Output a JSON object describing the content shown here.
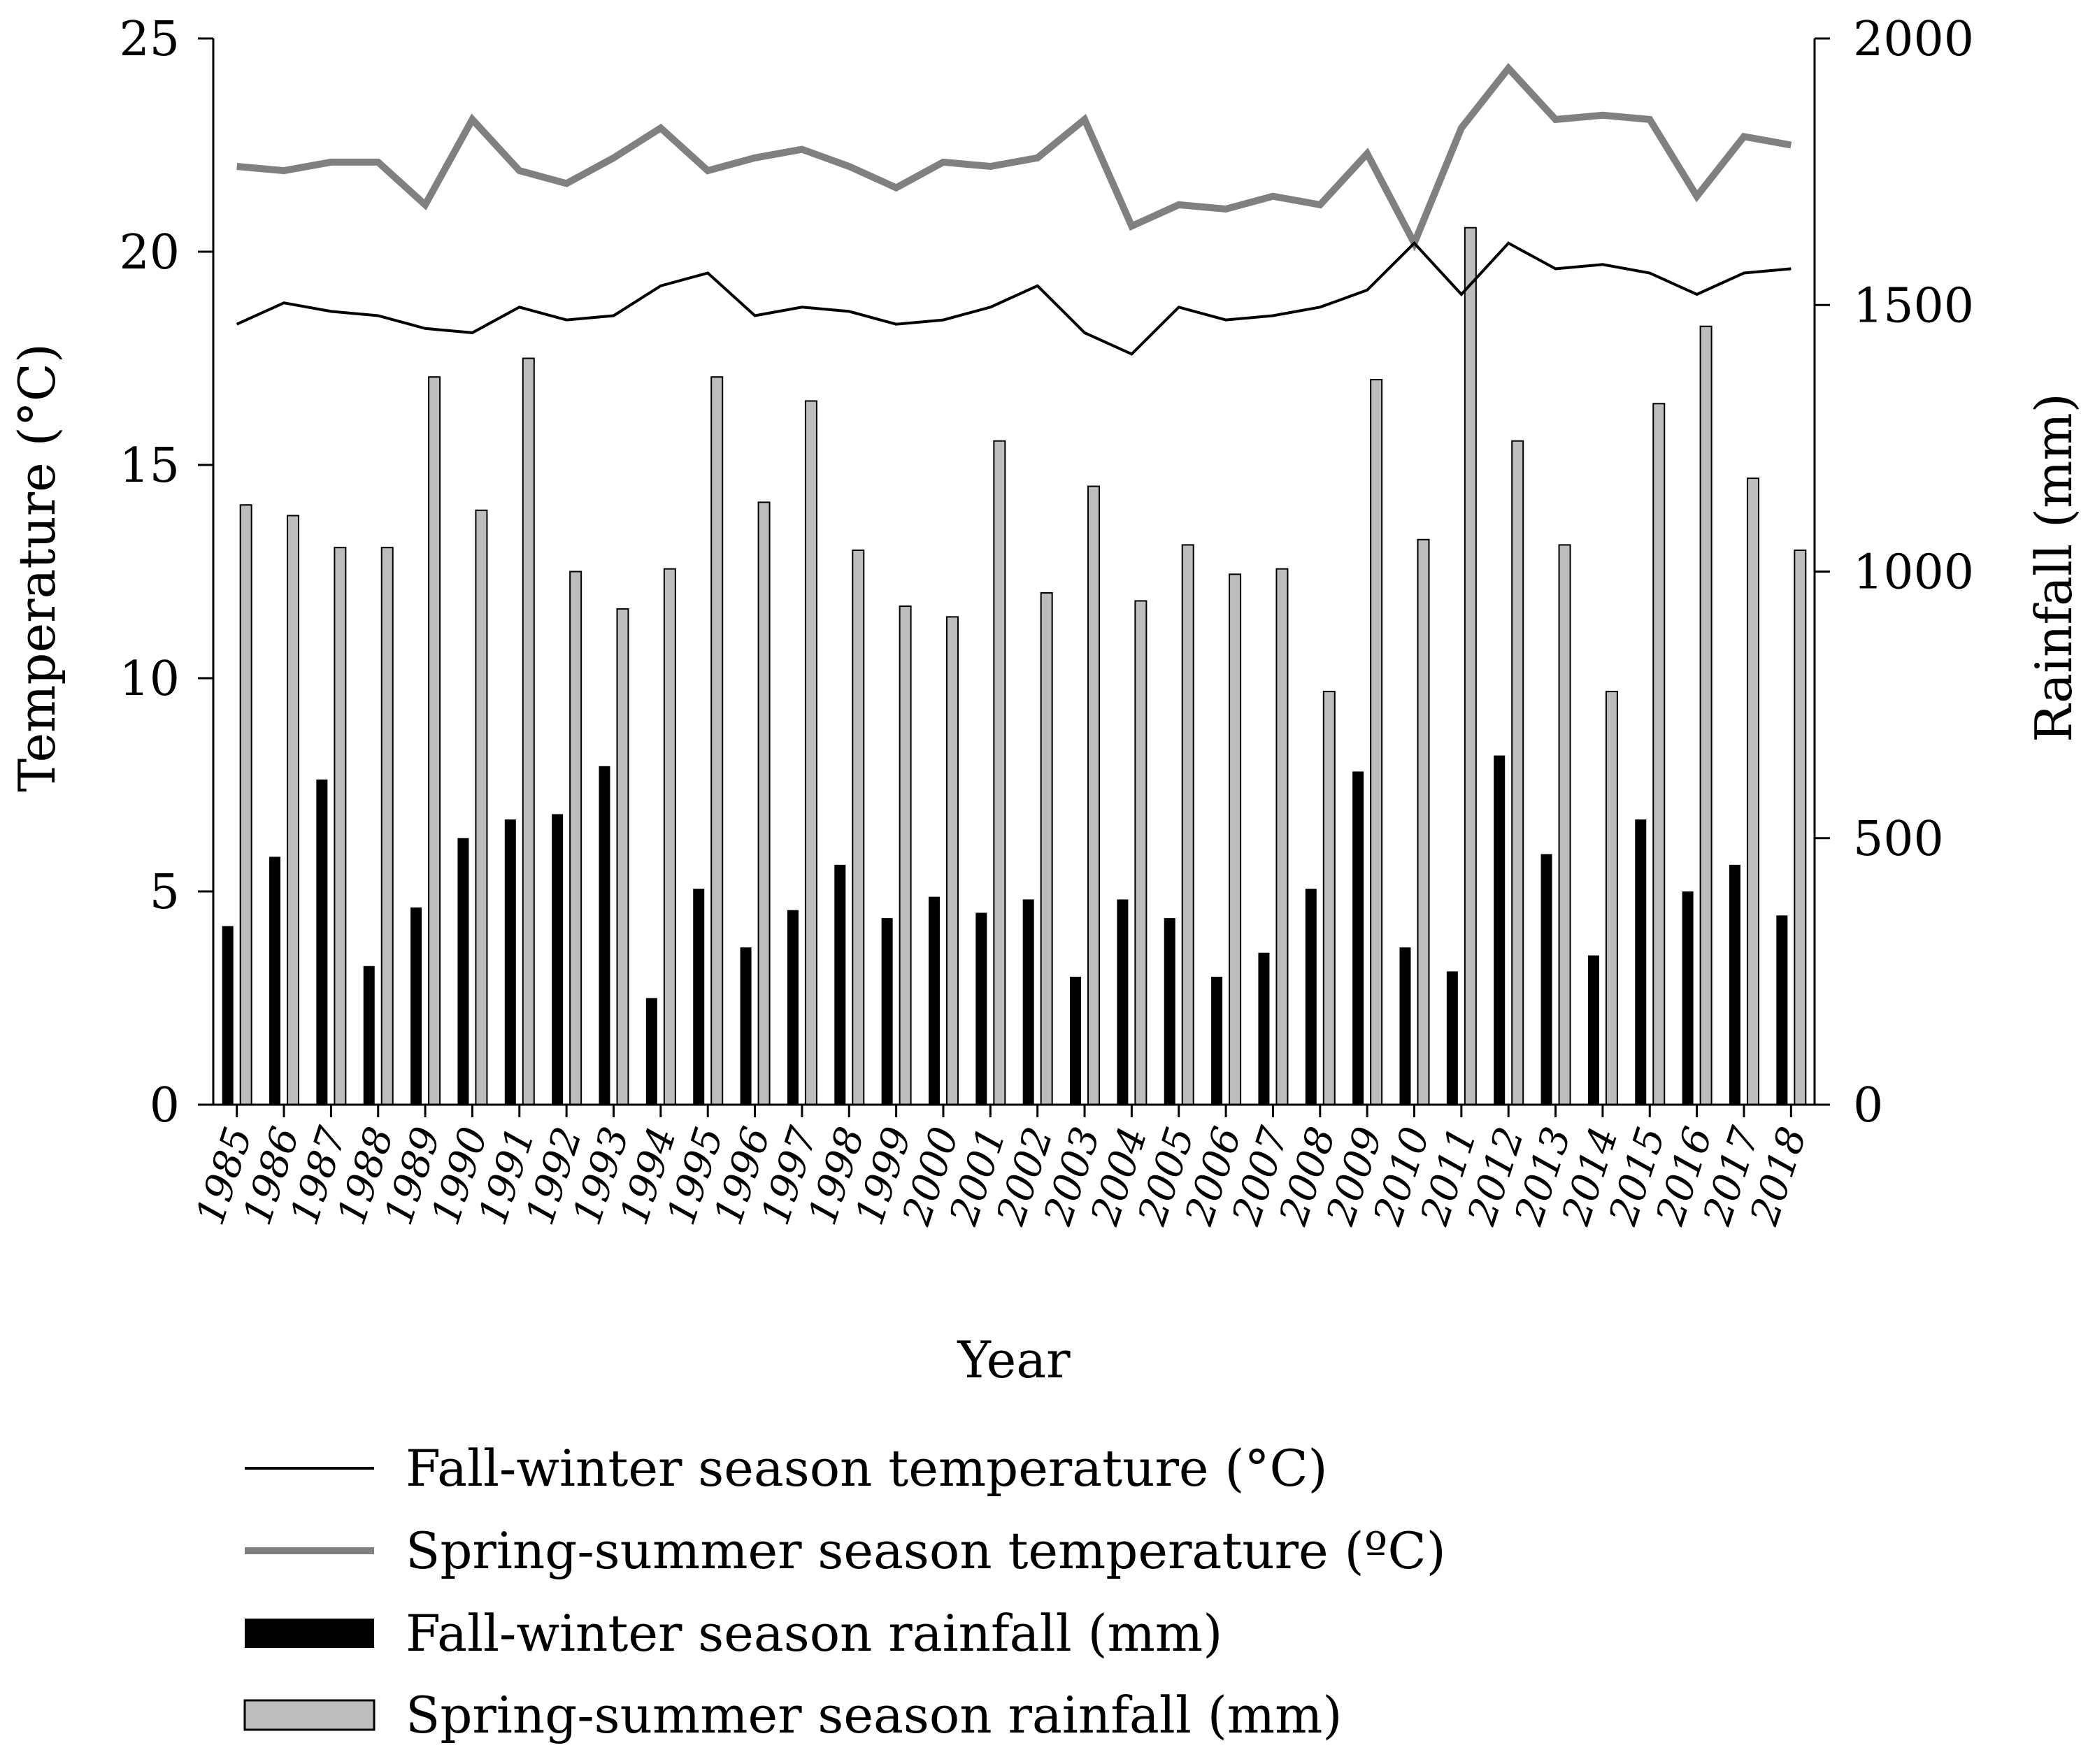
{
  "chart_data": {
    "type": "bar",
    "xlabel": "Year",
    "ylabel_left": "Temperature (°C)",
    "ylabel_right": "Rainfall (mm)",
    "ylim_left": [
      0,
      25
    ],
    "ylim_right": [
      0,
      2000
    ],
    "left_ticks": [
      "0",
      "5",
      "10",
      "15",
      "20",
      "25"
    ],
    "right_ticks": [
      "0",
      "500",
      "1000",
      "1500",
      "2000"
    ],
    "categories": [
      "1985",
      "1986",
      "1987",
      "1988",
      "1989",
      "1990",
      "1991",
      "1992",
      "1993",
      "1994",
      "1995",
      "1996",
      "1997",
      "1998",
      "1999",
      "2000",
      "2001",
      "2002",
      "2003",
      "2004",
      "2005",
      "2006",
      "2007",
      "2008",
      "2009",
      "2010",
      "2011",
      "2012",
      "2013",
      "2014",
      "2015",
      "2016",
      "2017",
      "2018"
    ],
    "series": [
      {
        "name": "Fall-winter season temperature (°C)",
        "kind": "line",
        "axis": "left",
        "color": "#000000",
        "values": [
          18.3,
          18.8,
          18.6,
          18.5,
          18.2,
          18.1,
          18.7,
          18.4,
          18.5,
          19.2,
          19.5,
          18.5,
          18.7,
          18.6,
          18.3,
          18.4,
          18.7,
          19.2,
          18.1,
          17.6,
          18.7,
          18.4,
          18.5,
          18.7,
          19.1,
          20.2,
          19.0,
          20.2,
          19.6,
          19.7,
          19.5,
          19.0,
          19.5,
          19.6
        ]
      },
      {
        "name": "Spring-summer season temperature (ºC)",
        "kind": "line",
        "axis": "left",
        "color": "#808080",
        "values": [
          22.0,
          21.9,
          22.1,
          22.1,
          21.1,
          23.1,
          21.9,
          21.6,
          22.2,
          22.9,
          21.9,
          22.2,
          22.4,
          22.0,
          21.5,
          22.1,
          22.0,
          22.2,
          23.1,
          20.6,
          21.1,
          21.0,
          21.3,
          21.1,
          22.3,
          20.2,
          22.9,
          24.3,
          23.1,
          23.2,
          23.1,
          21.3,
          22.7,
          22.5
        ]
      },
      {
        "name": "Fall-winter season rainfall (mm)",
        "kind": "bar",
        "axis": "right",
        "color": "#000000",
        "values": [
          335,
          465,
          610,
          260,
          370,
          500,
          535,
          545,
          635,
          200,
          405,
          295,
          365,
          450,
          350,
          390,
          360,
          385,
          240,
          385,
          350,
          240,
          285,
          405,
          625,
          295,
          250,
          655,
          470,
          280,
          535,
          400,
          450,
          355
        ]
      },
      {
        "name": "Spring-summer season rainfall (mm)",
        "kind": "bar",
        "axis": "right",
        "color": "#bdbdbd",
        "values": [
          1125,
          1105,
          1045,
          1045,
          1365,
          1115,
          1400,
          1000,
          930,
          1005,
          1365,
          1130,
          1320,
          1040,
          935,
          915,
          1245,
          960,
          1160,
          945,
          1050,
          995,
          1005,
          775,
          1360,
          1060,
          1645,
          1245,
          1050,
          775,
          1315,
          1460,
          1175,
          1040
        ]
      }
    ]
  }
}
